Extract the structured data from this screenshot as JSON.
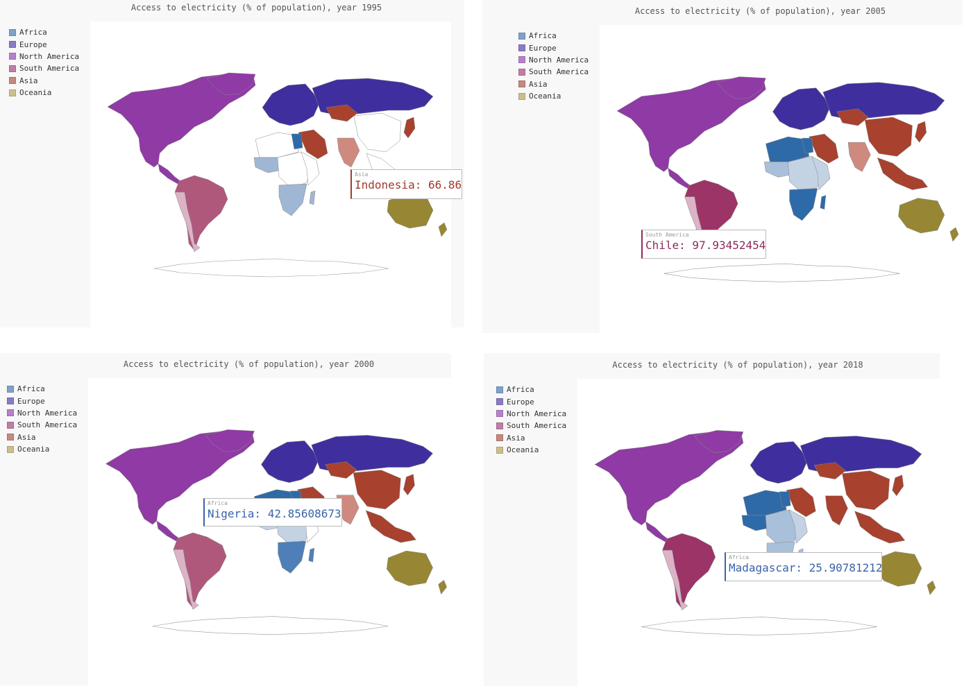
{
  "colors": {
    "Africa": "#7ea2c9",
    "Europe": "#8a7cc4",
    "North America": "#b780cc",
    "South America": "#c07ea6",
    "Asia": "#c6887f",
    "Oceania": "#cdbf8c",
    "Africa_dark": "#2f6aa8",
    "Africa_light": "#c3d3e4",
    "Europe_dark": "#3f2f9e",
    "NorthAmerica_dark": "#8f3aa5",
    "SouthAmerica_dark": "#9c3468",
    "SouthAmerica_mid": "#b0577c",
    "SouthAmerica_light": "#dcb3c6",
    "Asia_dark": "#a8412e",
    "Asia_mid": "#cf8a7f",
    "Oceania_dark": "#978633",
    "Oceania_light": "#eee6cf"
  },
  "legend": [
    "Africa",
    "Europe",
    "North America",
    "South America",
    "Asia",
    "Oceania"
  ],
  "panels": [
    {
      "id": "1995",
      "title": "Access to electricity (% of population), year 1995",
      "tooltip": {
        "category": "Asia",
        "text": "Indonesia: 66.86",
        "color": "#a13a2b"
      }
    },
    {
      "id": "2005",
      "title": "Access to electricity (% of population), year 2005",
      "tooltip": {
        "category": "South America",
        "text": "Chile: 97.93452454",
        "color": "#8c2a5c"
      }
    },
    {
      "id": "2000",
      "title": "Access to electricity (% of population), year 2000",
      "tooltip": {
        "category": "Africa",
        "text": "Nigeria: 42.85608673",
        "color": "#3a63a8"
      }
    },
    {
      "id": "2018",
      "title": "Access to electricity (% of population), year 2018",
      "tooltip": {
        "category": "Africa",
        "text": "Madagascar: 25.90781212",
        "color": "#3a63a8"
      }
    }
  ]
}
